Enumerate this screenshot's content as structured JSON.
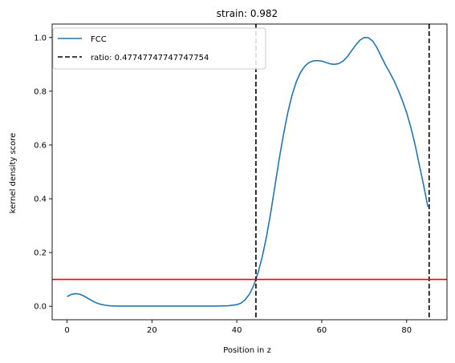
{
  "chart_data": {
    "type": "line",
    "title": "strain: 0.982",
    "xlabel": "Position in z",
    "ylabel": "kernel density score",
    "xlim": [
      -3.5,
      89.5
    ],
    "ylim": [
      -0.05,
      1.05
    ],
    "xticks": [
      0,
      20,
      40,
      60,
      80
    ],
    "yticks": [
      0.0,
      0.2,
      0.4,
      0.6,
      0.8,
      1.0
    ],
    "xtick_labels": [
      "0",
      "20",
      "40",
      "60",
      "80"
    ],
    "ytick_labels": [
      "0.0",
      "0.2",
      "0.4",
      "0.6",
      "0.8",
      "1.0"
    ],
    "grid": false,
    "legend_position": "upper left",
    "series": [
      {
        "name": "FCC",
        "color": "#1f77b4",
        "style": "solid",
        "x": [
          0,
          1,
          2,
          3,
          4,
          5,
          6,
          7,
          8,
          9,
          10,
          12,
          15,
          20,
          25,
          30,
          35,
          38,
          40,
          41,
          42,
          43,
          44,
          45,
          46,
          47,
          48,
          49,
          50,
          51,
          52,
          53,
          54,
          55,
          56,
          57,
          58,
          59,
          60,
          61,
          62,
          63,
          64,
          65,
          66,
          67,
          68,
          69,
          70,
          71,
          72,
          73,
          74,
          75,
          76,
          77,
          78,
          79,
          80,
          81,
          82,
          83,
          84,
          85
        ],
        "values": [
          0.036,
          0.044,
          0.047,
          0.045,
          0.038,
          0.029,
          0.02,
          0.012,
          0.007,
          0.004,
          0.002,
          0.001,
          0.001,
          0.001,
          0.001,
          0.001,
          0.001,
          0.002,
          0.006,
          0.012,
          0.025,
          0.046,
          0.078,
          0.125,
          0.185,
          0.26,
          0.35,
          0.45,
          0.55,
          0.64,
          0.72,
          0.785,
          0.835,
          0.87,
          0.893,
          0.907,
          0.913,
          0.914,
          0.912,
          0.907,
          0.902,
          0.9,
          0.903,
          0.912,
          0.928,
          0.95,
          0.972,
          0.99,
          1.0,
          0.999,
          0.987,
          0.962,
          0.93,
          0.898,
          0.87,
          0.84,
          0.805,
          0.765,
          0.72,
          0.665,
          0.6,
          0.525,
          0.45,
          0.37
        ]
      },
      {
        "name": "ratio: 0.47747747747747754",
        "color": "#000000",
        "style": "dashed",
        "vertical_lines_x": [
          44.5,
          85.3
        ]
      }
    ],
    "hline": {
      "y": 0.1,
      "color": "#ff0000"
    }
  }
}
